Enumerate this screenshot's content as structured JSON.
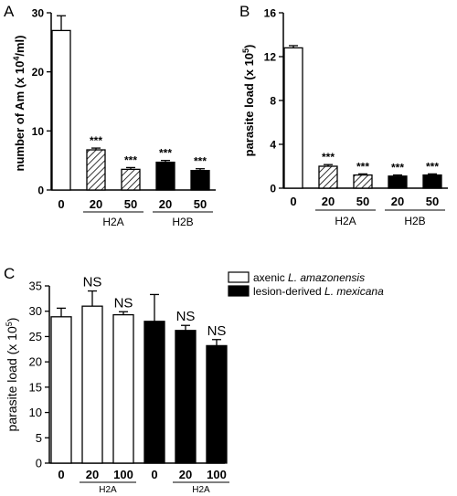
{
  "chart_data": [
    {
      "panel": "A",
      "type": "bar",
      "ylabel_parts": [
        "number of Am (x 10",
        "4",
        "/ml)"
      ],
      "ylim": [
        0,
        30
      ],
      "yticks": [
        "0",
        "10",
        "20",
        "30"
      ],
      "categories": [
        "0",
        "20",
        "50",
        "20",
        "50"
      ],
      "fills": [
        "white",
        "hatch",
        "hatch",
        "black",
        "black"
      ],
      "values": [
        27,
        6.8,
        3.5,
        4.7,
        3.3
      ],
      "errors": [
        2.5,
        0.3,
        0.3,
        0.3,
        0.3
      ],
      "significance": [
        "",
        "***",
        "***",
        "***",
        "***"
      ],
      "groups": [
        {
          "label": "H2A",
          "bars": [
            1,
            2
          ]
        },
        {
          "label": "H2B",
          "bars": [
            3,
            4
          ]
        }
      ]
    },
    {
      "panel": "B",
      "type": "bar",
      "ylabel_parts": [
        "parasite load (x 10",
        "5",
        ")"
      ],
      "ylim": [
        0,
        16
      ],
      "yticks": [
        "0",
        "4",
        "8",
        "12",
        "16"
      ],
      "categories": [
        "0",
        "20",
        "50",
        "20",
        "50"
      ],
      "fills": [
        "white",
        "hatch",
        "hatch",
        "black",
        "black"
      ],
      "values": [
        12.8,
        2.0,
        1.2,
        1.1,
        1.2
      ],
      "errors": [
        0.2,
        0.15,
        0.1,
        0.1,
        0.1
      ],
      "significance": [
        "",
        "***",
        "***",
        "***",
        "***"
      ],
      "groups": [
        {
          "label": "H2A",
          "bars": [
            1,
            2
          ]
        },
        {
          "label": "H2B",
          "bars": [
            3,
            4
          ]
        }
      ]
    },
    {
      "panel": "C",
      "type": "bar",
      "ylabel_parts": [
        "parasite load (x 10",
        "5",
        ")"
      ],
      "ylim": [
        0,
        35
      ],
      "yticks": [
        "0",
        "5",
        "10",
        "15",
        "20",
        "25",
        "30",
        "35"
      ],
      "categories": [
        "0",
        "20",
        "100",
        "0",
        "20",
        "100"
      ],
      "fills": [
        "white",
        "white",
        "white",
        "black",
        "black",
        "black"
      ],
      "values": [
        28.9,
        31.0,
        29.3,
        28.0,
        26.2,
        23.2
      ],
      "errors": [
        1.7,
        3.0,
        0.6,
        5.3,
        1.0,
        1.2
      ],
      "significance": [
        "",
        "NS",
        "NS",
        "",
        "NS",
        "NS"
      ],
      "groups": [
        {
          "label": "H2A",
          "bars": [
            1,
            2
          ]
        },
        {
          "label": "H2A",
          "bars": [
            4,
            5
          ]
        }
      ],
      "legend": [
        {
          "fill": "white",
          "prefix": "axenic ",
          "italic": "L. amazonensis"
        },
        {
          "fill": "black",
          "prefix": "lesion-derived ",
          "italic": "L. mexicana"
        }
      ]
    }
  ]
}
